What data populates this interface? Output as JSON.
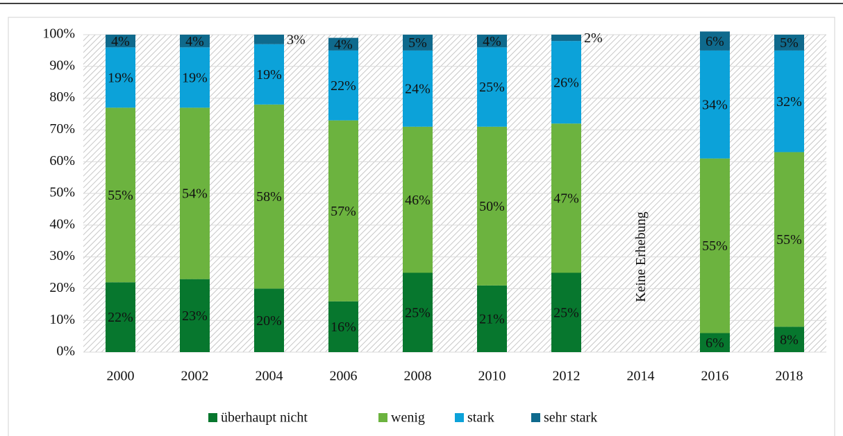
{
  "chart_data": {
    "type": "stacked-bar",
    "categories": [
      "2000",
      "2002",
      "2004",
      "2006",
      "2008",
      "2010",
      "2012",
      "2014",
      "2016",
      "2018"
    ],
    "series": [
      {
        "name": "überhaupt nicht",
        "color": "#07772e",
        "label_color": "#ffffff",
        "values": [
          22,
          23,
          20,
          16,
          25,
          21,
          25,
          null,
          6,
          8
        ],
        "value_labels": [
          "22%",
          "23%",
          "20%",
          "16%",
          "25%",
          "21%",
          "25%",
          null,
          "6%",
          "8%"
        ]
      },
      {
        "name": "wenig",
        "color": "#6cb33f",
        "label_color": "#111111",
        "values": [
          55,
          54,
          58,
          57,
          46,
          50,
          47,
          null,
          55,
          55
        ],
        "value_labels": [
          "55%",
          "54%",
          "58%",
          "57%",
          "46%",
          "50%",
          "47%",
          null,
          "55%",
          "55%"
        ]
      },
      {
        "name": "stark",
        "color": "#0ca2d9",
        "label_color": "#111111",
        "values": [
          19,
          19,
          19,
          22,
          24,
          25,
          26,
          null,
          34,
          32
        ],
        "value_labels": [
          "19%",
          "19%",
          "19%",
          "22%",
          "24%",
          "25%",
          "26%",
          null,
          "34%",
          "32%"
        ]
      },
      {
        "name": "sehr stark",
        "color": "#0f6a8d",
        "label_color": "#ffffff",
        "values": [
          4,
          4,
          3,
          4,
          5,
          4,
          2,
          null,
          6,
          5
        ],
        "value_labels": [
          "4%",
          "4%",
          "3%",
          "4%",
          "5%",
          "4%",
          "2%",
          null,
          "6%",
          "5%"
        ]
      }
    ],
    "annotation": "Keine Erhebung",
    "ylim": [
      0,
      100
    ],
    "yticks": [
      {
        "value": 0,
        "label": "0%"
      },
      {
        "value": 10,
        "label": "10%"
      },
      {
        "value": 20,
        "label": "20%"
      },
      {
        "value": 30,
        "label": "30%"
      },
      {
        "value": 40,
        "label": "40%"
      },
      {
        "value": 50,
        "label": "50%"
      },
      {
        "value": 60,
        "label": "60%"
      },
      {
        "value": 70,
        "label": "70%"
      },
      {
        "value": 80,
        "label": "80%"
      },
      {
        "value": 90,
        "label": "90%"
      },
      {
        "value": 100,
        "label": "100%"
      }
    ],
    "grid": true,
    "legend": "bottom"
  }
}
